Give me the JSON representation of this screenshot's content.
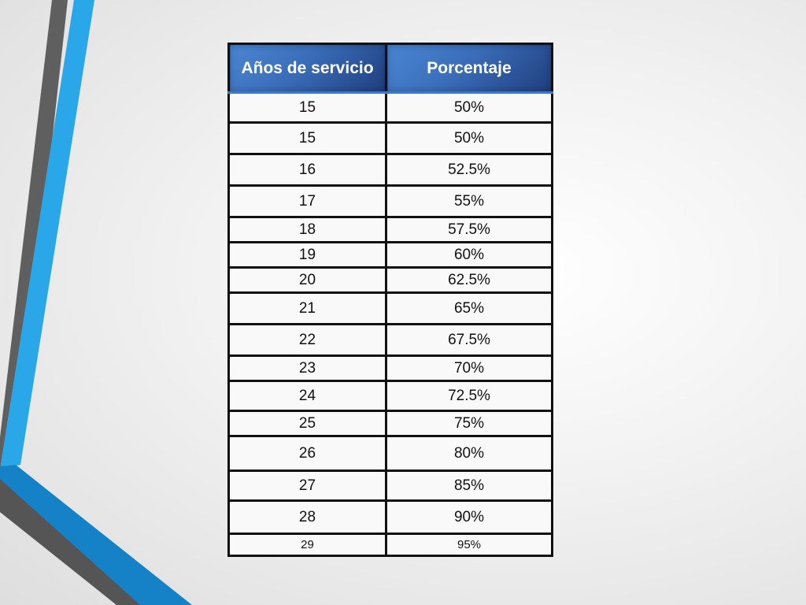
{
  "table": {
    "headers": [
      "Años de servicio",
      "Porcentaje"
    ],
    "rows": [
      [
        "15",
        "50%"
      ],
      [
        "15",
        "50%"
      ],
      [
        "16",
        "52.5%"
      ],
      [
        "17",
        "55%"
      ],
      [
        "18",
        "57.5%"
      ],
      [
        "19",
        "60%"
      ],
      [
        "20",
        "62.5%"
      ],
      [
        "21",
        "65%"
      ],
      [
        "22",
        "67.5%"
      ],
      [
        "23",
        "70%"
      ],
      [
        "24",
        "72.5%"
      ],
      [
        "25",
        "75%"
      ],
      [
        "26",
        "80%"
      ],
      [
        "27",
        "85%"
      ],
      [
        "28",
        "90%"
      ],
      [
        "29",
        "95%"
      ]
    ]
  },
  "colors": {
    "header_blue": "#3a6db9",
    "accent_light_blue": "#29a6e6",
    "accent_dark_blue": "#1582c7",
    "accent_gray": "#5b5b5b"
  }
}
